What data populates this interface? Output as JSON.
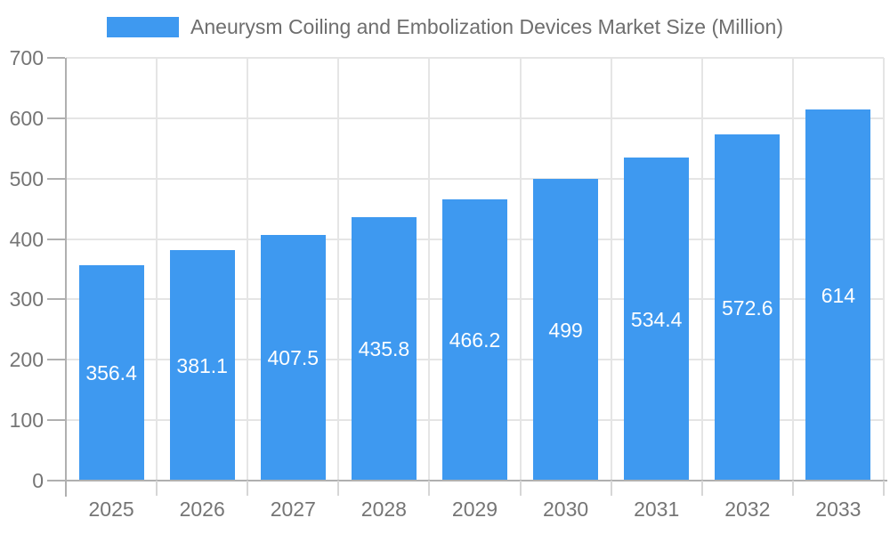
{
  "chart_data": {
    "type": "bar",
    "title": "Aneurysm Coiling and Embolization Devices Market Size (Million)",
    "categories": [
      "2025",
      "2026",
      "2027",
      "2028",
      "2029",
      "2030",
      "2031",
      "2032",
      "2033"
    ],
    "values": [
      356.4,
      381.1,
      407.5,
      435.8,
      466.2,
      499,
      534.4,
      572.6,
      614
    ],
    "value_labels": [
      "356.4",
      "381.1",
      "407.5",
      "435.8",
      "466.2",
      "499",
      "534.4",
      "572.6",
      "614"
    ],
    "xlabel": "",
    "ylabel": "",
    "ylim": [
      0,
      700
    ],
    "ytick_step": 100,
    "ytick_labels": [
      "0",
      "100",
      "200",
      "300",
      "400",
      "500",
      "600",
      "700"
    ],
    "grid": true,
    "legend_position": "top",
    "bar_label_position": "inside-center",
    "colors": {
      "bar": "#3E99F0",
      "bar_label": "#ffffff",
      "axis": "#b0b0b0",
      "gridline": "#e5e5e5",
      "x_tick": "#d6d6d6",
      "tick_label": "#757575",
      "legend_text": "#6e6e6e",
      "background": "#ffffff"
    }
  }
}
